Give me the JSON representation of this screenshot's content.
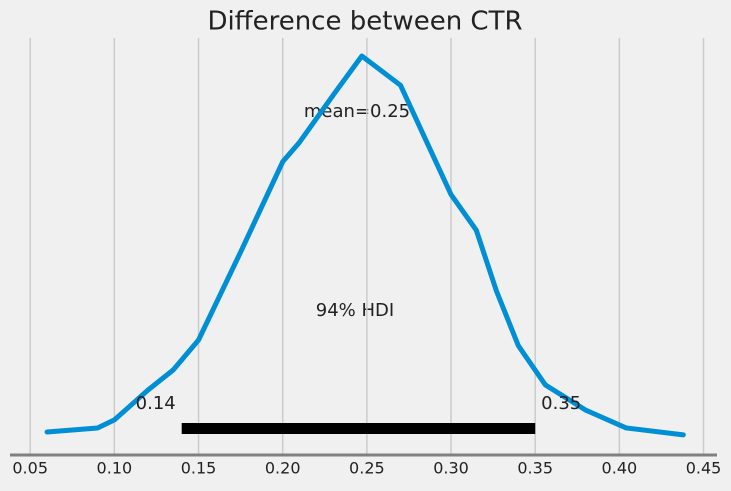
{
  "chart_data": {
    "type": "line",
    "title": "Difference between CTR",
    "x": [
      0.06,
      0.09,
      0.1,
      0.12,
      0.135,
      0.15,
      0.175,
      0.2,
      0.21,
      0.23,
      0.247,
      0.27,
      0.285,
      0.3,
      0.315,
      0.327,
      0.34,
      0.356,
      0.38,
      0.404,
      0.438
    ],
    "series": [
      {
        "color": "#008fd5",
        "values": [
          0.07,
          0.14,
          0.28,
          0.8,
          1.15,
          1.67,
          3.2,
          4.77,
          5.11,
          5.93,
          6.61,
          6.1,
          5.15,
          4.2,
          3.58,
          2.52,
          1.57,
          0.89,
          0.45,
          0.14,
          0.02
        ]
      }
    ],
    "xlim": [
      0.038,
      0.458
    ],
    "xticks": [
      0.05,
      {
        "value": 0.1,
        "label": "0.10"
      },
      0.15,
      {
        "value": 0.2,
        "label": "0.20"
      },
      0.25,
      {
        "value": 0.3,
        "label": "0.30"
      },
      0.35,
      {
        "value": 0.4,
        "label": "0.40"
      },
      0.45
    ],
    "grid": true,
    "mean_annotation": "mean=0.25",
    "hdi": [
      0.14,
      0.35
    ],
    "hdi_label": "94% HDI",
    "hdi_color": "#000000"
  }
}
